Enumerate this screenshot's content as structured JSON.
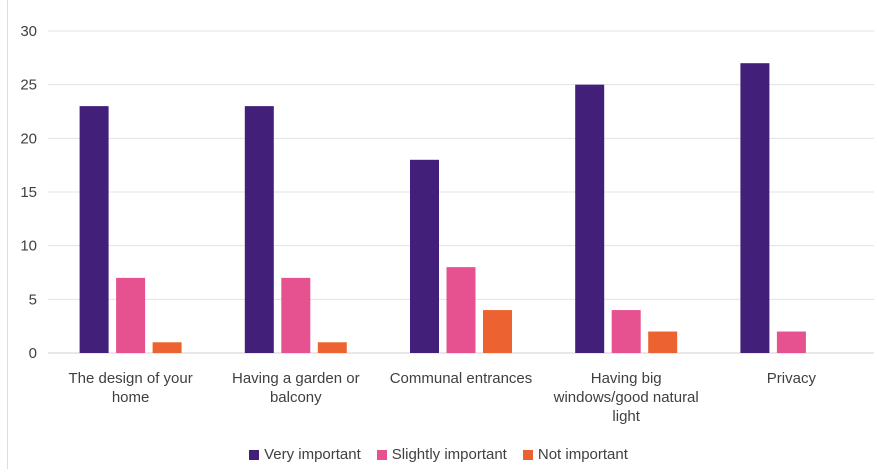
{
  "chart_data": {
    "type": "bar",
    "categories": [
      [
        "The design of your",
        "home"
      ],
      [
        "Having a garden or",
        "balcony"
      ],
      [
        "Communal entrances"
      ],
      [
        "Having big",
        "windows/good natural",
        "light"
      ],
      [
        "Privacy"
      ]
    ],
    "series": [
      {
        "name": "Very important",
        "color": "#42207a",
        "values": [
          23,
          23,
          18,
          25,
          27
        ]
      },
      {
        "name": "Slightly important",
        "color": "#e6528f",
        "values": [
          7,
          7,
          8,
          4,
          2
        ]
      },
      {
        "name": "Not important",
        "color": "#ec6230",
        "values": [
          1,
          1,
          4,
          2,
          0
        ]
      }
    ],
    "ylim": [
      0,
      30
    ],
    "yticks": [
      "0",
      "5",
      "10",
      "15",
      "20",
      "25",
      "30"
    ],
    "grid": true,
    "legend_position": "bottom"
  }
}
